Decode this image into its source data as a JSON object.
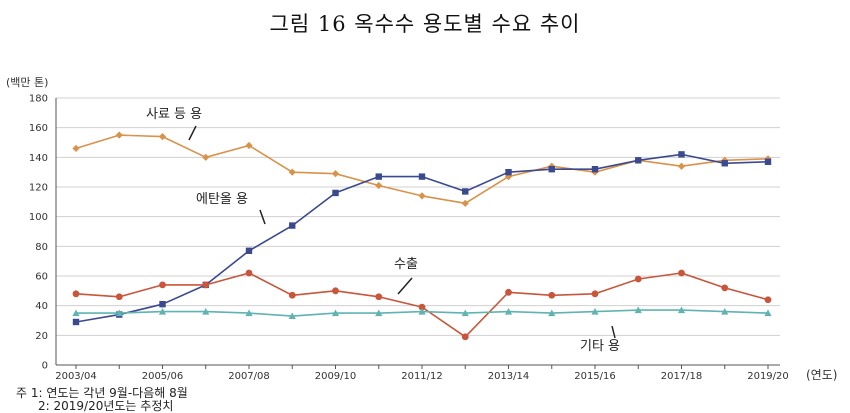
{
  "title": "그림 16 옥수수 용도별 수요 추이",
  "y_unit": "(백만 톤)",
  "x_unit": "(연도)",
  "notes": [
    "주 1:  연도는 각년 9월-다음해 8월",
    "2: 2019/20년도는 추정치"
  ],
  "colors": {
    "feed": "#d9924a",
    "ethanol": "#3b4a8f",
    "export": "#c9553a",
    "other": "#5fb3b0",
    "grid": "#d0d0d0",
    "axis": "#555555"
  },
  "chart_data": {
    "type": "line",
    "xlabel": "(연도)",
    "ylabel": "(백만 톤)",
    "ylim": [
      0,
      180
    ],
    "yticks": [
      "0",
      "20",
      "40",
      "60",
      "80",
      "100",
      "120",
      "140",
      "160",
      "180"
    ],
    "categories": [
      "2003/04",
      "2004/05",
      "2005/06",
      "2006/07",
      "2007/08",
      "2008/09",
      "2009/10",
      "2010/11",
      "2011/12",
      "2012/13",
      "2013/14",
      "2014/15",
      "2015/16",
      "2016/17",
      "2017/18",
      "2018/19",
      "2019/20"
    ],
    "xtick_labels": [
      "2003/04",
      "",
      "2005/06",
      "",
      "2007/08",
      "",
      "2009/10",
      "",
      "2011/12",
      "",
      "2013/14",
      "",
      "2015/16",
      "",
      "2017/18",
      "",
      "2019/20"
    ],
    "grid": "horizontal",
    "series": [
      {
        "name": "사료 등 용",
        "key": "feed",
        "marker": "diamond",
        "values": [
          146,
          155,
          154,
          140,
          148,
          130,
          129,
          121,
          114,
          109,
          127,
          134,
          130,
          138,
          134,
          138,
          139
        ]
      },
      {
        "name": "에탄올 용",
        "key": "ethanol",
        "marker": "square",
        "values": [
          29,
          34,
          41,
          54,
          77,
          94,
          116,
          127,
          127,
          117,
          130,
          132,
          132,
          138,
          142,
          136,
          137
        ]
      },
      {
        "name": "수출",
        "key": "export",
        "marker": "circle",
        "values": [
          48,
          46,
          54,
          54,
          62,
          47,
          50,
          46,
          39,
          19,
          49,
          47,
          48,
          58,
          62,
          52,
          44
        ]
      },
      {
        "name": "기타 용",
        "key": "other",
        "marker": "triangle",
        "values": [
          35,
          35,
          36,
          36,
          35,
          33,
          35,
          35,
          36,
          35,
          36,
          35,
          36,
          37,
          37,
          36,
          35
        ]
      }
    ]
  }
}
